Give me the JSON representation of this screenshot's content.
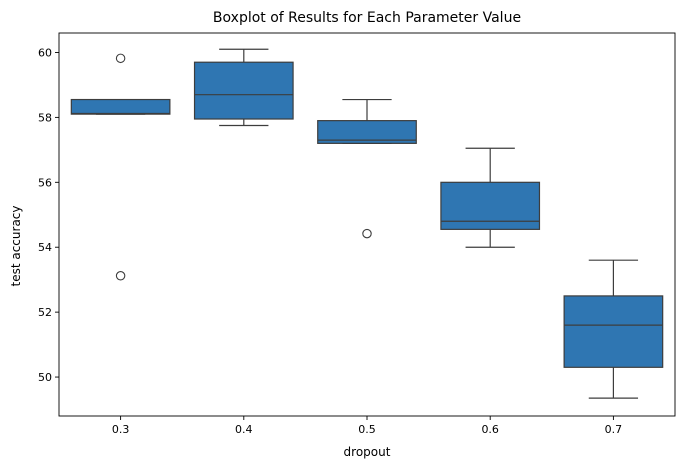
{
  "chart_data": {
    "type": "box",
    "title": "Boxplot of Results for Each Parameter Value",
    "xlabel": "dropout",
    "ylabel": "test accuracy",
    "categories": [
      "0.3",
      "0.4",
      "0.5",
      "0.6",
      "0.7"
    ],
    "yticks": [
      "50",
      "52",
      "54",
      "56",
      "58",
      "60"
    ],
    "ylim": [
      48.8,
      60.6
    ],
    "grid": false,
    "box_color": "#2f76b2",
    "line_color": "#3d3d3d",
    "boxes": [
      {
        "category": "0.3",
        "whisker_low": 58.1,
        "q1": 58.1,
        "median": 58.12,
        "q3": 58.55,
        "whisker_high": 58.55,
        "outliers": [
          59.82,
          53.12
        ]
      },
      {
        "category": "0.4",
        "whisker_low": 57.75,
        "q1": 57.95,
        "median": 58.7,
        "q3": 59.7,
        "whisker_high": 60.1,
        "outliers": []
      },
      {
        "category": "0.5",
        "whisker_low": 57.2,
        "q1": 57.2,
        "median": 57.3,
        "q3": 57.9,
        "whisker_high": 58.55,
        "outliers": [
          54.42
        ]
      },
      {
        "category": "0.6",
        "whisker_low": 54.0,
        "q1": 54.55,
        "median": 54.8,
        "q3": 56.0,
        "whisker_high": 57.05,
        "outliers": []
      },
      {
        "category": "0.7",
        "whisker_low": 49.35,
        "q1": 50.3,
        "median": 51.6,
        "q3": 52.5,
        "whisker_high": 53.6,
        "outliers": []
      }
    ]
  }
}
